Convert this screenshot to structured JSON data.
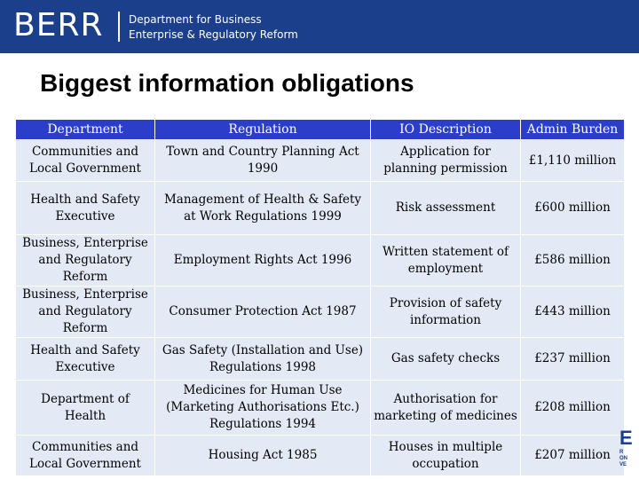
{
  "header": {
    "logo": "BERR",
    "department_line1": "Department for Business",
    "department_line2": "Enterprise & Regulatory Reform"
  },
  "page": {
    "title": "Biggest information obligations"
  },
  "table": {
    "columns": [
      "Department",
      "Regulation",
      "IO Description",
      "Admin Burden"
    ],
    "rows": [
      [
        "Communities and Local Government",
        "Town and Country Planning Act 1990",
        "Application for planning permission",
        "£1,110 million"
      ],
      [
        "Health and Safety Executive",
        "Management of Health & Safety at Work Regulations 1999",
        "Risk assessment",
        "£600 million"
      ],
      [
        "Business, Enterprise and Regulatory Reform",
        "Employment Rights Act 1996",
        "Written statement of employment",
        "£586 million"
      ],
      [
        "Business, Enterprise and Regulatory Reform",
        "Consumer Protection Act 1987",
        "Provision of safety information",
        "£443 million"
      ],
      [
        "Health and Safety Executive",
        "Gas Safety (Installation and Use) Regulations 1998",
        "Gas safety checks",
        "£237 million"
      ],
      [
        "Department of Health",
        "Medicines for Human Use (Marketing Authorisations Etc.) Regulations 1994",
        "Authorisation for marketing of medicines",
        "£208 million"
      ],
      [
        "Communities and Local Government",
        "Housing Act 1985",
        "Houses in multiple occupation",
        "£207 million"
      ]
    ]
  },
  "footer_logo": {
    "big": "E",
    "small": "R\nON\nVE"
  },
  "colors": {
    "banner": "#1c3f8c",
    "table_header": "#2a3ec9",
    "table_cell": "#e3eaf6"
  }
}
